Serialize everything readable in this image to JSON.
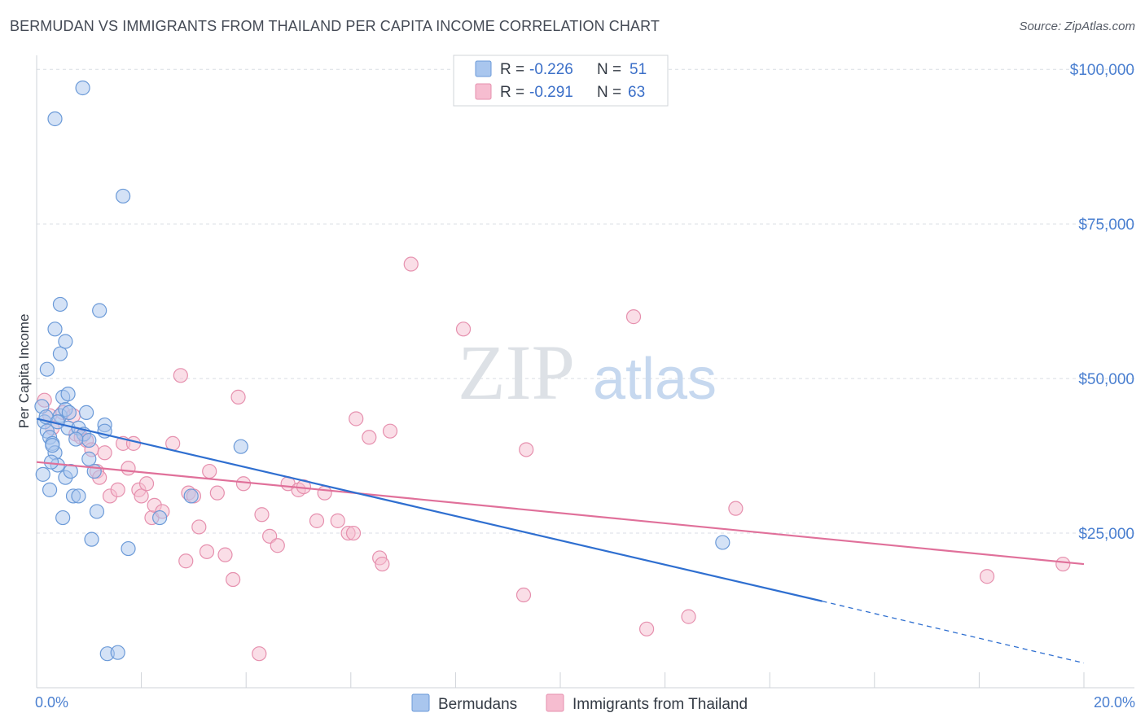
{
  "header": {
    "title": "BERMUDAN VS IMMIGRANTS FROM THAILAND PER CAPITA INCOME CORRELATION CHART",
    "source": "Source: ZipAtlas.com"
  },
  "watermark": {
    "zip": "ZIP",
    "atlas": "atlas"
  },
  "colors": {
    "blue_fill": "#a9c6ee",
    "blue_stroke": "#6b9ad8",
    "blue_line": "#2f6fd0",
    "pink_fill": "#f6bdd0",
    "pink_stroke": "#e690ae",
    "pink_line": "#e0709a",
    "grid": "#d9dde4",
    "tick_text": "#4a7fd0"
  },
  "chart_data": {
    "type": "scatter",
    "title": "BERMUDAN VS IMMIGRANTS FROM THAILAND PER CAPITA INCOME CORRELATION CHART",
    "xlabel": "",
    "ylabel": "Per Capita Income",
    "xlim": [
      0,
      20
    ],
    "ylim": [
      0,
      102000
    ],
    "x_tick_labels": [
      "0.0%",
      "20.0%"
    ],
    "y_ticks": [
      {
        "value": 25000,
        "label": "$25,000"
      },
      {
        "value": 50000,
        "label": "$50,000"
      },
      {
        "value": 75000,
        "label": "$75,000"
      },
      {
        "value": 100000,
        "label": "$100,000"
      }
    ],
    "legend_top": [
      {
        "r_label": "R =",
        "r": "-0.226",
        "n_label": "N =",
        "n": "51"
      },
      {
        "r_label": "R =",
        "r": "-0.291",
        "n_label": "N =",
        "n": "63"
      }
    ],
    "series": [
      {
        "name": "Bermudans",
        "trend": {
          "x0": 0.0,
          "y0": 43500,
          "x1": 15.0,
          "y1": 14000,
          "dash_to_x": 20.0,
          "dash_to_y": 4000
        },
        "points": [
          [
            0.1,
            45500
          ],
          [
            0.15,
            43000
          ],
          [
            0.2,
            41500
          ],
          [
            0.25,
            40500
          ],
          [
            0.3,
            39500
          ],
          [
            0.12,
            34500
          ],
          [
            0.25,
            32000
          ],
          [
            0.35,
            38000
          ],
          [
            0.45,
            44000
          ],
          [
            0.5,
            47000
          ],
          [
            0.55,
            45000
          ],
          [
            0.6,
            42000
          ],
          [
            0.4,
            36000
          ],
          [
            0.55,
            34000
          ],
          [
            0.65,
            35000
          ],
          [
            0.5,
            27500
          ],
          [
            0.7,
            31000
          ],
          [
            0.8,
            31000
          ],
          [
            0.8,
            42000
          ],
          [
            0.9,
            41000
          ],
          [
            1.0,
            40000
          ],
          [
            0.95,
            44500
          ],
          [
            1.0,
            37000
          ],
          [
            1.15,
            28500
          ],
          [
            1.1,
            35000
          ],
          [
            1.3,
            42500
          ],
          [
            1.3,
            41500
          ],
          [
            0.6,
            47500
          ],
          [
            0.45,
            54000
          ],
          [
            0.55,
            56000
          ],
          [
            0.35,
            58000
          ],
          [
            0.2,
            51500
          ],
          [
            0.45,
            62000
          ],
          [
            1.2,
            61000
          ],
          [
            0.35,
            92000
          ],
          [
            0.88,
            97000
          ],
          [
            1.65,
            79500
          ],
          [
            1.05,
            24000
          ],
          [
            1.75,
            22500
          ],
          [
            2.35,
            27500
          ],
          [
            2.95,
            31000
          ],
          [
            3.9,
            39000
          ],
          [
            1.35,
            5500
          ],
          [
            1.55,
            5700
          ],
          [
            13.1,
            23500
          ],
          [
            0.3,
            39200
          ],
          [
            0.18,
            43800
          ],
          [
            0.75,
            40200
          ],
          [
            0.4,
            43000
          ],
          [
            0.28,
            36500
          ],
          [
            0.62,
            44500
          ]
        ]
      },
      {
        "name": "Immigrants from Thailand",
        "trend": {
          "x0": 0.0,
          "y0": 36500,
          "x1": 20.0,
          "y1": 20000
        },
        "points": [
          [
            0.15,
            46500
          ],
          [
            0.25,
            44000
          ],
          [
            0.3,
            42000
          ],
          [
            0.5,
            44500
          ],
          [
            0.7,
            44000
          ],
          [
            0.75,
            41000
          ],
          [
            0.85,
            40500
          ],
          [
            0.95,
            40000
          ],
          [
            1.05,
            38500
          ],
          [
            1.15,
            35000
          ],
          [
            1.2,
            34000
          ],
          [
            1.3,
            38000
          ],
          [
            1.4,
            31000
          ],
          [
            1.55,
            32000
          ],
          [
            1.65,
            39500
          ],
          [
            1.75,
            35500
          ],
          [
            1.85,
            39500
          ],
          [
            1.95,
            32000
          ],
          [
            2.0,
            31000
          ],
          [
            2.1,
            33000
          ],
          [
            2.2,
            27500
          ],
          [
            2.25,
            29500
          ],
          [
            2.4,
            28500
          ],
          [
            2.6,
            39500
          ],
          [
            2.75,
            50500
          ],
          [
            2.85,
            20500
          ],
          [
            2.9,
            31500
          ],
          [
            3.0,
            31000
          ],
          [
            3.1,
            26000
          ],
          [
            3.25,
            22000
          ],
          [
            3.3,
            35000
          ],
          [
            3.45,
            31500
          ],
          [
            3.6,
            21500
          ],
          [
            3.75,
            17500
          ],
          [
            3.85,
            47000
          ],
          [
            3.95,
            33000
          ],
          [
            4.3,
            28000
          ],
          [
            4.45,
            24500
          ],
          [
            4.6,
            23000
          ],
          [
            4.8,
            33000
          ],
          [
            5.0,
            32000
          ],
          [
            5.1,
            32500
          ],
          [
            5.35,
            27000
          ],
          [
            5.5,
            31500
          ],
          [
            5.75,
            27000
          ],
          [
            5.95,
            25000
          ],
          [
            6.05,
            25000
          ],
          [
            6.1,
            43500
          ],
          [
            6.35,
            40500
          ],
          [
            6.55,
            21000
          ],
          [
            6.6,
            20000
          ],
          [
            6.75,
            41500
          ],
          [
            4.25,
            5500
          ],
          [
            7.15,
            68500
          ],
          [
            8.15,
            58000
          ],
          [
            9.35,
            38500
          ],
          [
            9.3,
            15000
          ],
          [
            11.4,
            60000
          ],
          [
            11.65,
            9500
          ],
          [
            12.45,
            11500
          ],
          [
            13.35,
            29000
          ],
          [
            18.15,
            18000
          ],
          [
            19.6,
            20000
          ]
        ]
      }
    ]
  }
}
